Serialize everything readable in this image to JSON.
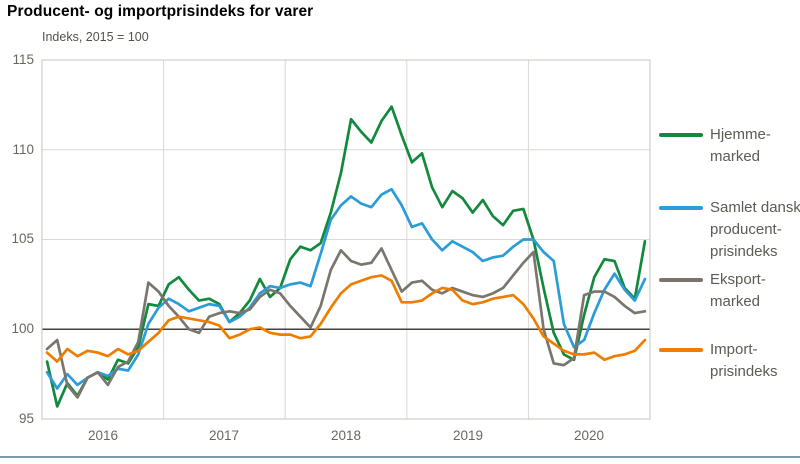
{
  "figure": {
    "title": "Producent- og importprisindeks for varer",
    "subtitle": "Indeks, 2015 = 100"
  },
  "colors": {
    "green": "#12893d",
    "blue": "#2b9cd8",
    "gray": "#7b766d",
    "orange": "#ef7d00",
    "grid": "#dbd9d3",
    "plot_border": "#c8c5bf",
    "baseline": "#45423c",
    "tick_text": "#6b675f",
    "bottom_rule": "#7d99ad"
  },
  "chart_data": {
    "type": "line",
    "title": "Producent- og importprisindeks for varer",
    "subtitle": "Indeks, 2015 = 100",
    "frequency": "monthly",
    "x_start": "2016-01",
    "x_end": "2020-12",
    "x_year_labels": [
      "2016",
      "2017",
      "2018",
      "2019",
      "2020"
    ],
    "y_ticks": [
      115,
      110,
      105,
      100,
      95
    ],
    "ylim": [
      95,
      115
    ],
    "baseline": 100,
    "grid": "vertical lines at year boundaries; horizontal at 105 and 110; dark reference line at 100",
    "legend_position": "right",
    "series": [
      {
        "name": "Hjemmemarked",
        "legend_lines": [
          "Hjemme-",
          "marked"
        ],
        "color": "#12893d",
        "values": [
          98.2,
          95.7,
          97.0,
          96.3,
          97.3,
          97.6,
          97.2,
          98.3,
          98.1,
          99.0,
          101.4,
          101.3,
          102.5,
          102.9,
          102.2,
          101.6,
          101.7,
          101.4,
          100.4,
          100.9,
          101.6,
          102.8,
          101.8,
          102.3,
          103.9,
          104.6,
          104.4,
          104.8,
          106.5,
          108.7,
          111.7,
          111.0,
          110.4,
          111.6,
          112.4,
          110.8,
          109.3,
          109.8,
          107.9,
          106.8,
          107.7,
          107.3,
          106.5,
          107.2,
          106.3,
          105.8,
          106.6,
          106.7,
          105.0,
          102.3,
          99.8,
          98.6,
          98.3,
          100.8,
          102.9,
          103.9,
          103.8,
          102.3,
          101.7,
          104.9
        ]
      },
      {
        "name": "Samlet dansk producentprisindeks",
        "legend_lines": [
          "Samlet dansk",
          "producent-",
          "prisindeks"
        ],
        "color": "#2b9cd8",
        "values": [
          97.6,
          96.7,
          97.5,
          96.9,
          97.3,
          97.6,
          97.4,
          97.8,
          97.7,
          98.6,
          100.3,
          101.2,
          101.7,
          101.4,
          101.0,
          101.2,
          101.4,
          101.3,
          100.4,
          100.7,
          101.2,
          102.0,
          102.4,
          102.3,
          102.5,
          102.6,
          102.4,
          104.2,
          106.1,
          106.9,
          107.4,
          107.0,
          106.8,
          107.5,
          107.8,
          106.9,
          105.7,
          105.9,
          105.0,
          104.4,
          104.9,
          104.6,
          104.3,
          103.8,
          104.0,
          104.1,
          104.6,
          105.0,
          105.0,
          104.3,
          103.8,
          100.3,
          99.0,
          99.4,
          100.9,
          102.2,
          103.1,
          102.2,
          101.6,
          102.8
        ]
      },
      {
        "name": "Eksportmarked",
        "legend_lines": [
          "Eksport-",
          "marked"
        ],
        "color": "#7b766d",
        "values": [
          98.9,
          99.4,
          96.9,
          96.2,
          97.3,
          97.6,
          96.9,
          97.9,
          98.2,
          99.3,
          102.6,
          102.1,
          101.3,
          100.7,
          100.0,
          99.8,
          100.7,
          100.9,
          101.0,
          100.9,
          101.1,
          101.8,
          102.2,
          102.0,
          101.3,
          100.7,
          100.1,
          101.3,
          103.3,
          104.4,
          103.8,
          103.6,
          103.7,
          104.5,
          103.3,
          102.1,
          102.6,
          102.7,
          102.2,
          102.0,
          102.3,
          102.1,
          101.9,
          101.8,
          102.0,
          102.3,
          103.0,
          103.7,
          104.3,
          100.0,
          98.1,
          98.0,
          98.4,
          101.9,
          102.1,
          102.1,
          101.8,
          101.3,
          100.9,
          101.0
        ]
      },
      {
        "name": "Importprisindeks",
        "legend_lines": [
          "Import-",
          "prisindeks"
        ],
        "color": "#ef7d00",
        "values": [
          98.7,
          98.2,
          98.9,
          98.5,
          98.8,
          98.7,
          98.5,
          98.9,
          98.6,
          98.8,
          99.3,
          99.8,
          100.5,
          100.7,
          100.6,
          100.5,
          100.4,
          100.2,
          99.5,
          99.7,
          100.0,
          100.1,
          99.8,
          99.7,
          99.7,
          99.5,
          99.6,
          100.3,
          101.2,
          102.0,
          102.5,
          102.7,
          102.9,
          103.0,
          102.7,
          101.5,
          101.5,
          101.6,
          102.0,
          102.3,
          102.2,
          101.6,
          101.4,
          101.5,
          101.7,
          101.8,
          101.9,
          101.4,
          100.6,
          99.6,
          99.2,
          98.8,
          98.6,
          98.6,
          98.7,
          98.3,
          98.5,
          98.6,
          98.8,
          99.4
        ]
      }
    ]
  }
}
